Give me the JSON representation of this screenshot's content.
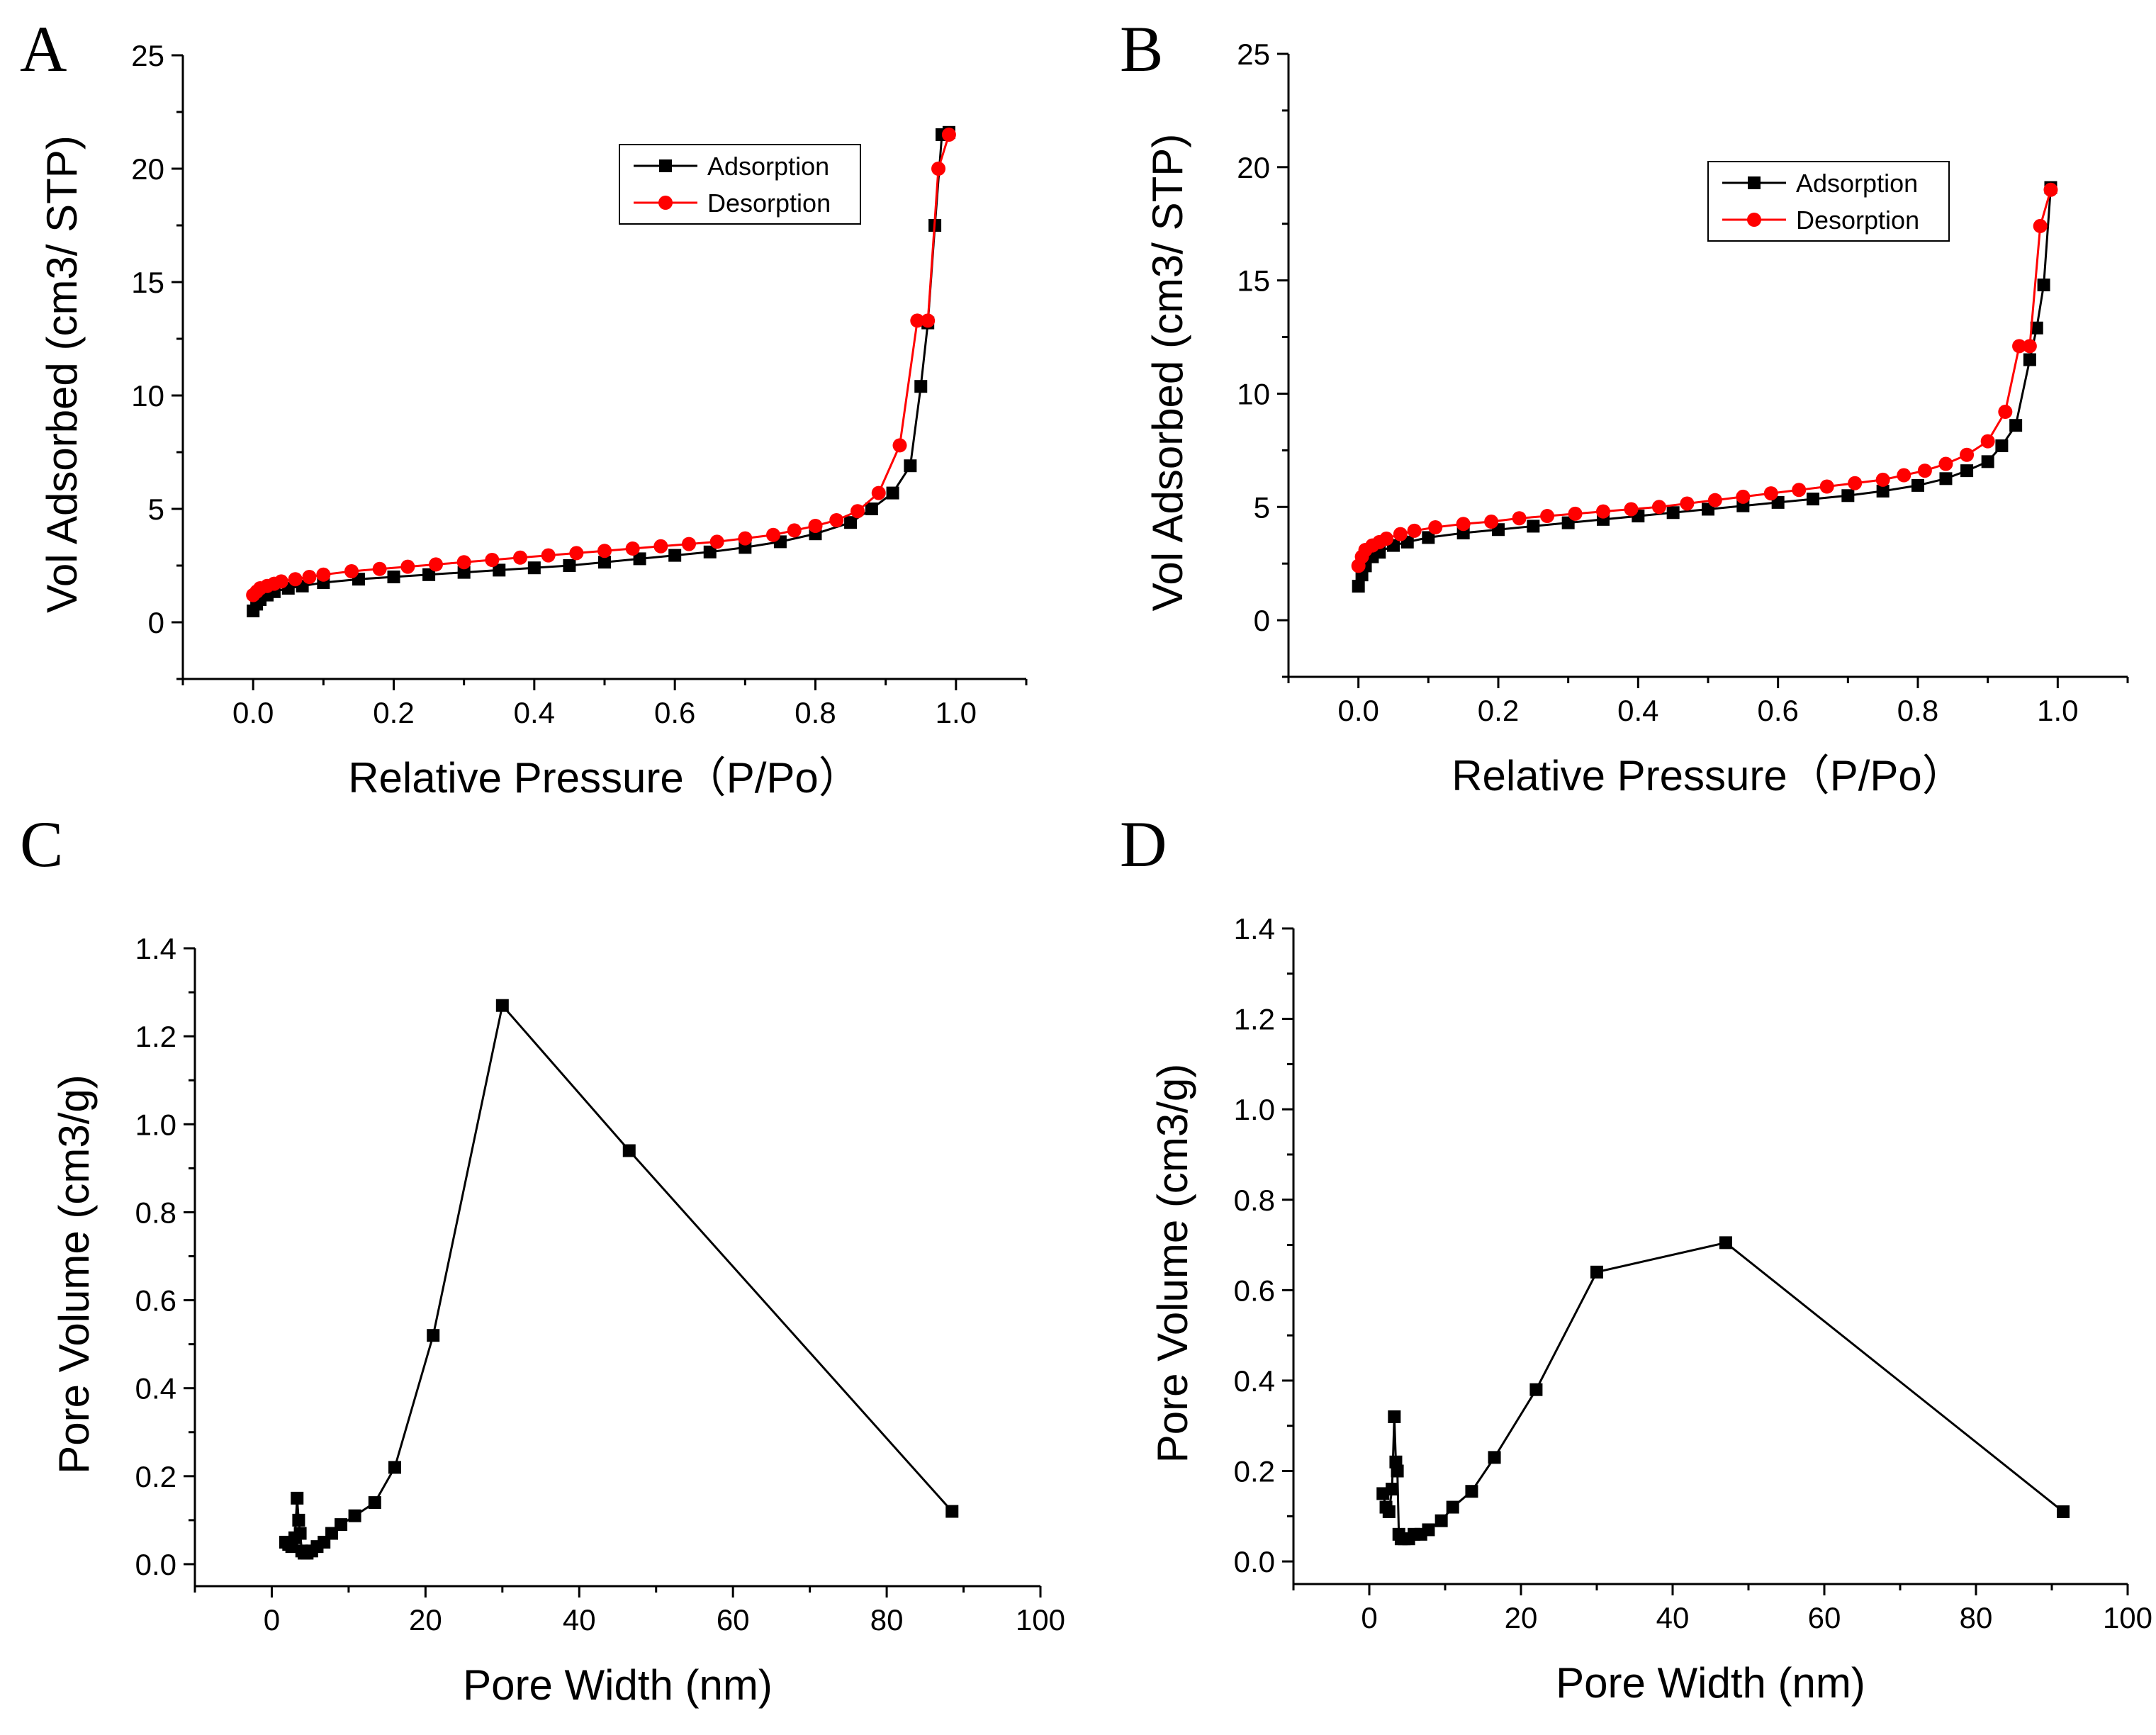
{
  "colors": {
    "adsorption": "#000000",
    "desorption": "#ff0000"
  },
  "chart_data": [
    {
      "panel": "A",
      "type": "line",
      "xlabel": "Relative Pressure（P/Po）",
      "ylabel": "Vol Adsorbed (cm3/ STP)",
      "xlim": [
        -0.1,
        1.1
      ],
      "ylim": [
        -2.5,
        25
      ],
      "xticks": [
        0.0,
        0.2,
        0.4,
        0.6,
        0.8,
        1.0
      ],
      "xtick_labels": [
        "0.0",
        "0.2",
        "0.4",
        "0.6",
        "0.8",
        "1.0"
      ],
      "yticks": [
        0,
        5,
        10,
        15,
        20,
        25
      ],
      "ytick_labels": [
        "0",
        "5",
        "10",
        "15",
        "20",
        "25"
      ],
      "legend": [
        "Adsorption",
        "Desorption"
      ],
      "legend_position": "top-right",
      "series": [
        {
          "name": "Adsorption",
          "marker": "square",
          "x": [
            0.0,
            0.005,
            0.01,
            0.02,
            0.03,
            0.05,
            0.07,
            0.1,
            0.15,
            0.2,
            0.25,
            0.3,
            0.35,
            0.4,
            0.45,
            0.5,
            0.55,
            0.6,
            0.65,
            0.7,
            0.75,
            0.8,
            0.85,
            0.88,
            0.91,
            0.935,
            0.95,
            0.96,
            0.97,
            0.98,
            0.99
          ],
          "values": [
            0.5,
            0.8,
            1.0,
            1.2,
            1.35,
            1.5,
            1.6,
            1.75,
            1.9,
            2.0,
            2.1,
            2.2,
            2.3,
            2.4,
            2.5,
            2.65,
            2.8,
            2.95,
            3.1,
            3.3,
            3.55,
            3.9,
            4.4,
            5.0,
            5.7,
            6.9,
            10.4,
            13.2,
            17.5,
            21.5,
            21.6
          ]
        },
        {
          "name": "Desorption",
          "marker": "circle",
          "x": [
            0.99,
            0.975,
            0.96,
            0.945,
            0.92,
            0.89,
            0.86,
            0.83,
            0.8,
            0.77,
            0.74,
            0.7,
            0.66,
            0.62,
            0.58,
            0.54,
            0.5,
            0.46,
            0.42,
            0.38,
            0.34,
            0.3,
            0.26,
            0.22,
            0.18,
            0.14,
            0.1,
            0.08,
            0.06,
            0.04,
            0.03,
            0.02,
            0.01,
            0.005,
            0.0
          ],
          "values": [
            21.5,
            20.0,
            13.3,
            13.3,
            7.8,
            5.7,
            4.9,
            4.5,
            4.25,
            4.05,
            3.85,
            3.7,
            3.55,
            3.45,
            3.35,
            3.25,
            3.15,
            3.05,
            2.95,
            2.85,
            2.75,
            2.65,
            2.55,
            2.45,
            2.35,
            2.25,
            2.1,
            2.0,
            1.9,
            1.8,
            1.7,
            1.6,
            1.5,
            1.35,
            1.2
          ]
        }
      ]
    },
    {
      "panel": "B",
      "type": "line",
      "xlabel": "Relative Pressure（P/Po）",
      "ylabel": "Vol Adsorbed (cm3/ STP)",
      "xlim": [
        -0.1,
        1.1
      ],
      "ylim": [
        -2.5,
        25
      ],
      "xticks": [
        0.0,
        0.2,
        0.4,
        0.6,
        0.8,
        1.0
      ],
      "xtick_labels": [
        "0.0",
        "0.2",
        "0.4",
        "0.6",
        "0.8",
        "1.0"
      ],
      "yticks": [
        0,
        5,
        10,
        15,
        20,
        25
      ],
      "ytick_labels": [
        "0",
        "5",
        "10",
        "15",
        "20",
        "25"
      ],
      "legend": [
        "Adsorption",
        "Desorption"
      ],
      "legend_position": "top-right",
      "series": [
        {
          "name": "Adsorption",
          "marker": "square",
          "x": [
            0.0,
            0.005,
            0.01,
            0.02,
            0.03,
            0.05,
            0.07,
            0.1,
            0.15,
            0.2,
            0.25,
            0.3,
            0.35,
            0.4,
            0.45,
            0.5,
            0.55,
            0.6,
            0.65,
            0.7,
            0.75,
            0.8,
            0.84,
            0.87,
            0.9,
            0.92,
            0.94,
            0.96,
            0.97,
            0.98,
            0.99
          ],
          "values": [
            1.5,
            2.0,
            2.4,
            2.8,
            3.0,
            3.3,
            3.45,
            3.65,
            3.85,
            4.0,
            4.15,
            4.3,
            4.45,
            4.6,
            4.75,
            4.9,
            5.05,
            5.2,
            5.35,
            5.5,
            5.7,
            5.95,
            6.25,
            6.6,
            7.0,
            7.7,
            8.6,
            11.5,
            12.9,
            14.8,
            19.1
          ]
        },
        {
          "name": "Desorption",
          "marker": "circle",
          "x": [
            0.99,
            0.975,
            0.96,
            0.945,
            0.925,
            0.9,
            0.87,
            0.84,
            0.81,
            0.78,
            0.75,
            0.71,
            0.67,
            0.63,
            0.59,
            0.55,
            0.51,
            0.47,
            0.43,
            0.39,
            0.35,
            0.31,
            0.27,
            0.23,
            0.19,
            0.15,
            0.11,
            0.08,
            0.06,
            0.04,
            0.03,
            0.02,
            0.01,
            0.005,
            0.0
          ],
          "values": [
            19.0,
            17.4,
            12.1,
            12.1,
            9.2,
            7.9,
            7.3,
            6.9,
            6.6,
            6.4,
            6.2,
            6.05,
            5.9,
            5.75,
            5.6,
            5.45,
            5.3,
            5.15,
            5.0,
            4.9,
            4.8,
            4.7,
            4.6,
            4.5,
            4.35,
            4.25,
            4.1,
            3.95,
            3.8,
            3.6,
            3.45,
            3.3,
            3.1,
            2.8,
            2.4
          ]
        }
      ]
    },
    {
      "panel": "C",
      "type": "line",
      "xlabel": "Pore Width (nm)",
      "ylabel": "Pore Volume (cm3/g)",
      "xlim": [
        -10,
        100
      ],
      "ylim": [
        -0.05,
        1.4
      ],
      "xticks": [
        0,
        20,
        40,
        60,
        80,
        100
      ],
      "xtick_labels": [
        "0",
        "20",
        "40",
        "60",
        "80",
        "100"
      ],
      "yticks": [
        0.0,
        0.2,
        0.4,
        0.6,
        0.8,
        1.0,
        1.2,
        1.4
      ],
      "ytick_labels": [
        "0.0",
        "0.2",
        "0.4",
        "0.6",
        "0.8",
        "1.0",
        "1.2",
        "1.4"
      ],
      "series": [
        {
          "name": "Pore Volume",
          "marker": "square",
          "x": [
            1.8,
            2.2,
            2.6,
            3.0,
            3.3,
            3.5,
            3.7,
            3.9,
            4.2,
            4.6,
            5.2,
            5.9,
            6.8,
            7.8,
            9.0,
            10.8,
            13.4,
            16.0,
            21.0,
            30.0,
            46.5,
            88.5
          ],
          "values": [
            0.05,
            0.045,
            0.04,
            0.06,
            0.15,
            0.1,
            0.07,
            0.03,
            0.025,
            0.025,
            0.03,
            0.04,
            0.05,
            0.07,
            0.09,
            0.11,
            0.14,
            0.22,
            0.52,
            1.27,
            0.94,
            0.12
          ]
        }
      ]
    },
    {
      "panel": "D",
      "type": "line",
      "xlabel": "Pore Width (nm)",
      "ylabel": "Pore Volume (cm3/g)",
      "xlim": [
        -10,
        100
      ],
      "ylim": [
        -0.05,
        1.4
      ],
      "xticks": [
        0,
        20,
        40,
        60,
        80,
        100
      ],
      "xtick_labels": [
        "0",
        "20",
        "40",
        "60",
        "80",
        "100"
      ],
      "yticks": [
        0.0,
        0.2,
        0.4,
        0.6,
        0.8,
        1.0,
        1.2,
        1.4
      ],
      "ytick_labels": [
        "0.0",
        "0.2",
        "0.4",
        "0.6",
        "0.8",
        "1.0",
        "1.2",
        "1.4"
      ],
      "series": [
        {
          "name": "Pore Volume",
          "marker": "square",
          "x": [
            1.8,
            2.2,
            2.6,
            3.0,
            3.3,
            3.5,
            3.7,
            3.9,
            4.2,
            4.6,
            5.2,
            5.9,
            6.8,
            7.8,
            9.5,
            11.0,
            13.5,
            16.5,
            22.0,
            30.0,
            47.0,
            91.5
          ],
          "values": [
            0.15,
            0.12,
            0.11,
            0.16,
            0.32,
            0.22,
            0.2,
            0.06,
            0.05,
            0.05,
            0.05,
            0.06,
            0.06,
            0.07,
            0.09,
            0.12,
            0.155,
            0.23,
            0.38,
            0.64,
            0.705,
            0.11
          ]
        }
      ]
    }
  ]
}
